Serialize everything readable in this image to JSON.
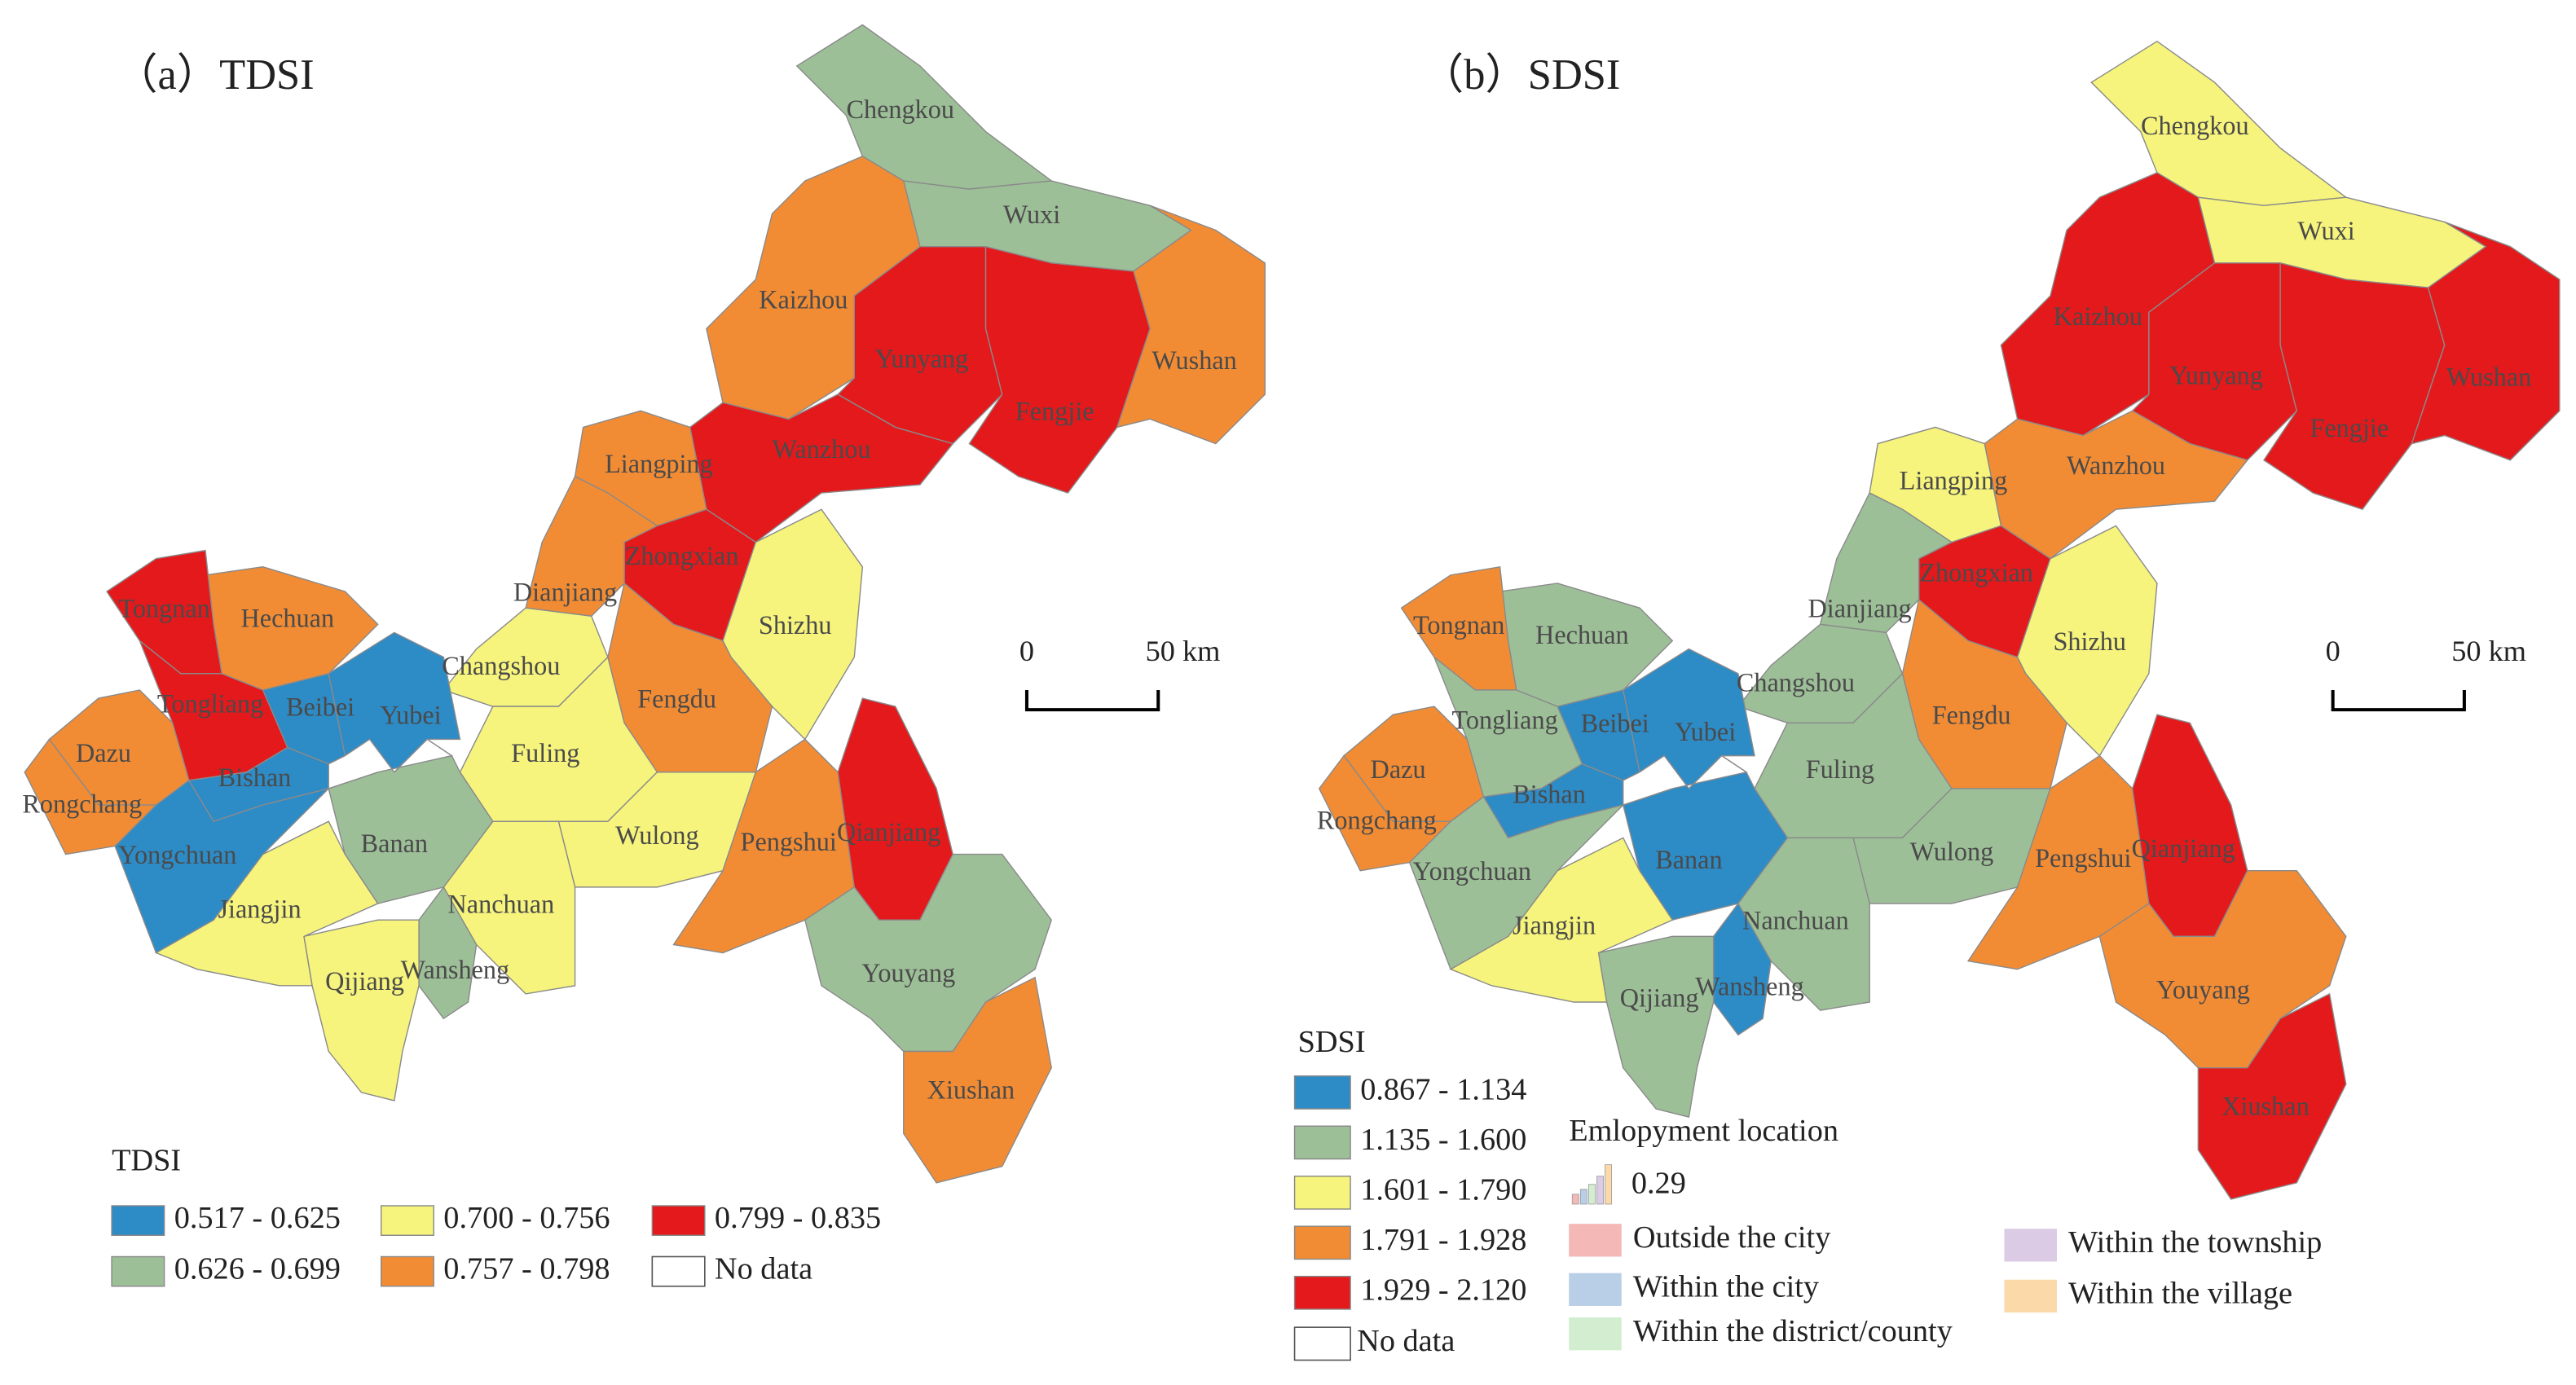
{
  "panels": [
    {
      "title": "（a）TDSI",
      "legend_title": "TDSI",
      "legend": [
        {
          "label": "0.517 - 0.625",
          "color": "#2d8bc6"
        },
        {
          "label": "0.626 - 0.699",
          "color": "#9dbf98"
        },
        {
          "label": "0.700 - 0.756",
          "color": "#f6f47c"
        },
        {
          "label": "0.757 - 0.798",
          "color": "#f28c34"
        },
        {
          "label": "0.799 - 0.835",
          "color": "#e3191c"
        }
      ],
      "no_data": "No data",
      "scale": {
        "zero": "0",
        "length": "50 km"
      },
      "districts": [
        {
          "name": "Chengkou",
          "class": 1
        },
        {
          "name": "Wuxi",
          "class": 1
        },
        {
          "name": "Kaizhou",
          "class": 3
        },
        {
          "name": "Yunyang",
          "class": 4
        },
        {
          "name": "Fengjie",
          "class": 4
        },
        {
          "name": "Wushan",
          "class": 3
        },
        {
          "name": "Wanzhou",
          "class": 4
        },
        {
          "name": "Liangping",
          "class": 3
        },
        {
          "name": "Zhongxian",
          "class": 4
        },
        {
          "name": "Dianjiang",
          "class": 3
        },
        {
          "name": "Shizhu",
          "class": 2
        },
        {
          "name": "Fengdu",
          "class": 3
        },
        {
          "name": "Changshou",
          "class": 2
        },
        {
          "name": "Fuling",
          "class": 2
        },
        {
          "name": "Wulong",
          "class": 2
        },
        {
          "name": "Pengshui",
          "class": 3
        },
        {
          "name": "Qianjiang",
          "class": 4
        },
        {
          "name": "Youyang",
          "class": 1
        },
        {
          "name": "Xiushan",
          "class": 3
        },
        {
          "name": "Nanchuan",
          "class": 2
        },
        {
          "name": "Wansheng",
          "class": 1
        },
        {
          "name": "Qijiang",
          "class": 2
        },
        {
          "name": "Banan",
          "class": 1
        },
        {
          "name": "Jiangjin",
          "class": 2
        },
        {
          "name": "Yubei",
          "class": 0
        },
        {
          "name": "Beibei",
          "class": 0
        },
        {
          "name": "Hechuan",
          "class": 3
        },
        {
          "name": "Tongnan",
          "class": 4
        },
        {
          "name": "Tongliang",
          "class": 4
        },
        {
          "name": "Dazu",
          "class": 3
        },
        {
          "name": "Rongchang",
          "class": 3
        },
        {
          "name": "Bishan",
          "class": 0
        },
        {
          "name": "Yongchuan",
          "class": 0
        }
      ]
    },
    {
      "title": "（b）SDSI",
      "legend_title": "SDSI",
      "legend": [
        {
          "label": "0.867 - 1.134",
          "color": "#2d8bc6"
        },
        {
          "label": "1.135 - 1.600",
          "color": "#9dbf98"
        },
        {
          "label": "1.601 - 1.790",
          "color": "#f6f47c"
        },
        {
          "label": "1.791 - 1.928",
          "color": "#f28c34"
        },
        {
          "label": "1.929 - 2.120",
          "color": "#e3191c"
        }
      ],
      "no_data": "No data",
      "scale": {
        "zero": "0",
        "length": "50 km"
      },
      "districts": [
        {
          "name": "Chengkou",
          "class": 2
        },
        {
          "name": "Wuxi",
          "class": 2
        },
        {
          "name": "Kaizhou",
          "class": 4
        },
        {
          "name": "Yunyang",
          "class": 4
        },
        {
          "name": "Fengjie",
          "class": 4
        },
        {
          "name": "Wushan",
          "class": 4
        },
        {
          "name": "Wanzhou",
          "class": 3
        },
        {
          "name": "Liangping",
          "class": 2
        },
        {
          "name": "Zhongxian",
          "class": 4
        },
        {
          "name": "Dianjiang",
          "class": 1
        },
        {
          "name": "Shizhu",
          "class": 2
        },
        {
          "name": "Fengdu",
          "class": 3
        },
        {
          "name": "Changshou",
          "class": 1
        },
        {
          "name": "Fuling",
          "class": 1
        },
        {
          "name": "Wulong",
          "class": 1
        },
        {
          "name": "Pengshui",
          "class": 3
        },
        {
          "name": "Qianjiang",
          "class": 4
        },
        {
          "name": "Youyang",
          "class": 3
        },
        {
          "name": "Xiushan",
          "class": 4
        },
        {
          "name": "Nanchuan",
          "class": 1
        },
        {
          "name": "Wansheng",
          "class": 0
        },
        {
          "name": "Qijiang",
          "class": 1
        },
        {
          "name": "Banan",
          "class": 0
        },
        {
          "name": "Jiangjin",
          "class": 2
        },
        {
          "name": "Yubei",
          "class": 0
        },
        {
          "name": "Beibei",
          "class": 0
        },
        {
          "name": "Hechuan",
          "class": 1
        },
        {
          "name": "Tongnan",
          "class": 3
        },
        {
          "name": "Tongliang",
          "class": 1
        },
        {
          "name": "Dazu",
          "class": 3
        },
        {
          "name": "Rongchang",
          "class": 3
        },
        {
          "name": "Bishan",
          "class": 0
        },
        {
          "name": "Yongchuan",
          "class": 1
        }
      ],
      "employment_legend": {
        "title": "Emlopyment location",
        "size_label": "0.29",
        "items": [
          {
            "label": "Outside the city",
            "color": "#f4b8b6"
          },
          {
            "label": "Within the city",
            "color": "#b9cfe7"
          },
          {
            "label": "Within the district/county",
            "color": "#d3edd1"
          },
          {
            "label": "Within the township",
            "color": "#dccbe4"
          },
          {
            "label": "Within the village",
            "color": "#fbd9a8"
          }
        ]
      }
    }
  ]
}
